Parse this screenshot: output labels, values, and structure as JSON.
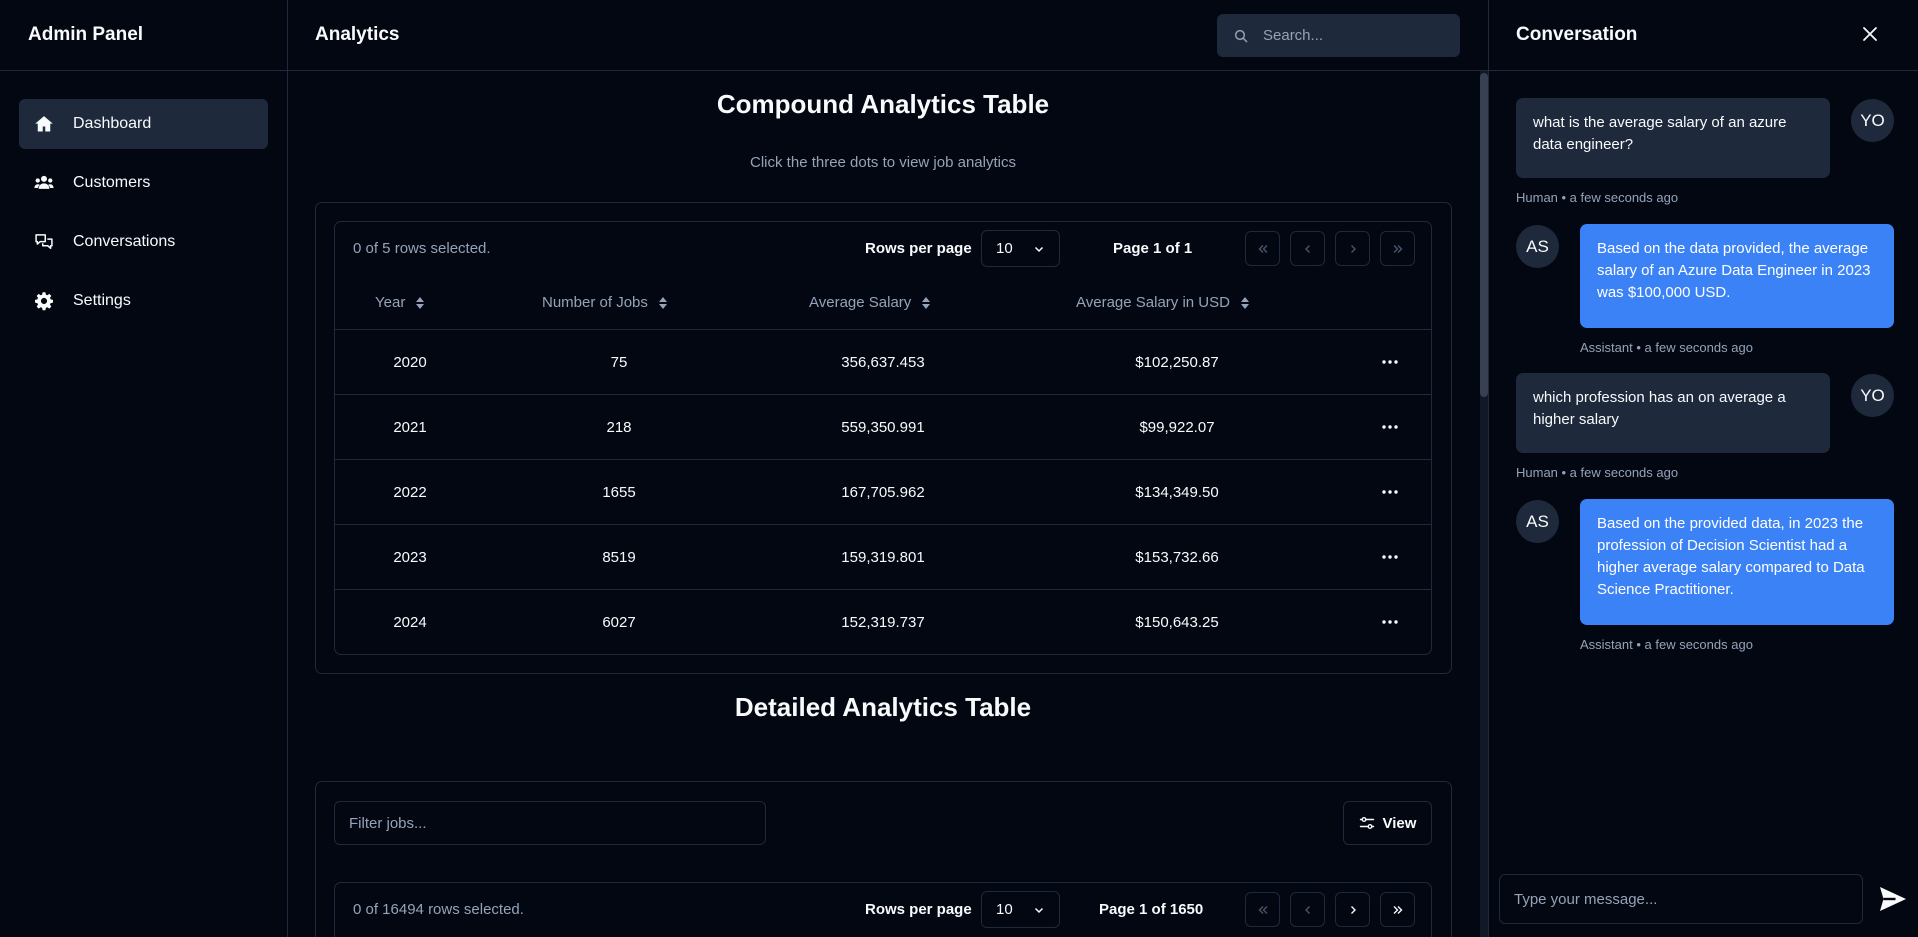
{
  "app": {
    "title": "Admin Panel"
  },
  "sidebar": {
    "items": [
      {
        "label": "Dashboard",
        "icon": "home-icon",
        "active": true
      },
      {
        "label": "Customers",
        "icon": "users-icon",
        "active": false
      },
      {
        "label": "Conversations",
        "icon": "chat-bubbles-icon",
        "active": false
      },
      {
        "label": "Settings",
        "icon": "gear-icon",
        "active": false
      }
    ]
  },
  "header": {
    "title": "Analytics",
    "search_placeholder": "Search..."
  },
  "compound": {
    "title": "Compound Analytics Table",
    "subtitle": "Click the three dots to view job analytics",
    "selected_text": "0 of 5 rows selected.",
    "rows_per_page_label": "Rows per page",
    "rows_per_page": "10",
    "page_info": "Page 1 of 1",
    "columns": [
      "Year",
      "Number of Jobs",
      "Average Salary",
      "Average Salary in USD"
    ],
    "rows": [
      {
        "year": "2020",
        "jobs": "75",
        "avg": "356,637.453",
        "usd": "$102,250.87"
      },
      {
        "year": "2021",
        "jobs": "218",
        "avg": "559,350.991",
        "usd": "$99,922.07"
      },
      {
        "year": "2022",
        "jobs": "1655",
        "avg": "167,705.962",
        "usd": "$134,349.50"
      },
      {
        "year": "2023",
        "jobs": "8519",
        "avg": "159,319.801",
        "usd": "$153,732.66"
      },
      {
        "year": "2024",
        "jobs": "6027",
        "avg": "152,319.737",
        "usd": "$150,643.25"
      }
    ]
  },
  "detailed": {
    "title": "Detailed Analytics Table",
    "filter_placeholder": "Filter jobs...",
    "view_label": "View",
    "selected_text": "0 of 16494 rows selected.",
    "rows_per_page_label": "Rows per page",
    "rows_per_page": "10",
    "page_info": "Page 1 of 1650"
  },
  "chat": {
    "title": "Conversation",
    "messages": [
      {
        "role": "human",
        "avatar": "YO",
        "text": "what is the average salary of an azure data engineer?",
        "meta": "Human • a few seconds ago"
      },
      {
        "role": "assistant",
        "avatar": "AS",
        "text": "Based on the data provided, the average salary of an Azure Data Engineer in 2023 was $100,000 USD.",
        "meta": "Assistant • a few seconds ago"
      },
      {
        "role": "human",
        "avatar": "YO",
        "text": "which profession has an on average a higher salary",
        "meta": "Human • a few seconds ago"
      },
      {
        "role": "assistant",
        "avatar": "AS",
        "text": "Based on the provided data, in 2023 the profession of Decision Scientist had a higher average salary compared to Data Science Practitioner.",
        "meta": "Assistant • a few seconds ago"
      }
    ],
    "input_placeholder": "Type your message..."
  },
  "colors": {
    "background": "#030712",
    "border": "#1e293b",
    "accent": "#3b82f6",
    "muted_text": "#94a3b8"
  }
}
